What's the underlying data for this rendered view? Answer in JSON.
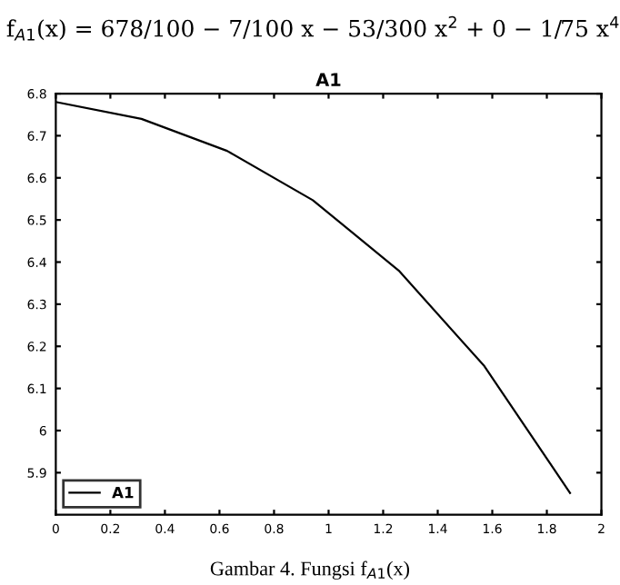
{
  "chart_data": {
    "type": "line",
    "title": "A1",
    "x": [
      0,
      0.314,
      0.628,
      0.942,
      1.257,
      1.571,
      1.885
    ],
    "series": [
      {
        "name": "A1",
        "color": "#000000",
        "values": [
          6.78,
          6.74,
          6.664,
          6.547,
          6.38,
          6.153,
          5.852
        ]
      }
    ],
    "xlim": [
      0,
      2
    ],
    "xticks": [
      0,
      0.2,
      0.4,
      0.6,
      0.8,
      1,
      1.2,
      1.4,
      1.6,
      1.8,
      2
    ],
    "ylim": [
      5.8,
      6.8
    ],
    "yticks": [
      5.9,
      6,
      6.1,
      6.2,
      6.3,
      6.4,
      6.5,
      6.6,
      6.7,
      6.8
    ],
    "legend": "bottom left",
    "grid": false,
    "marker": "none",
    "line_style": "solid",
    "annotations": [
      "f$_{A1}$(x) = 678/100 − 7/100 x − 53/300 x$^{2}$ + 0 − 1/75 x$^{4}$",
      "Gambar 4. Fungsi f$_{A1}$(x)"
    ]
  }
}
